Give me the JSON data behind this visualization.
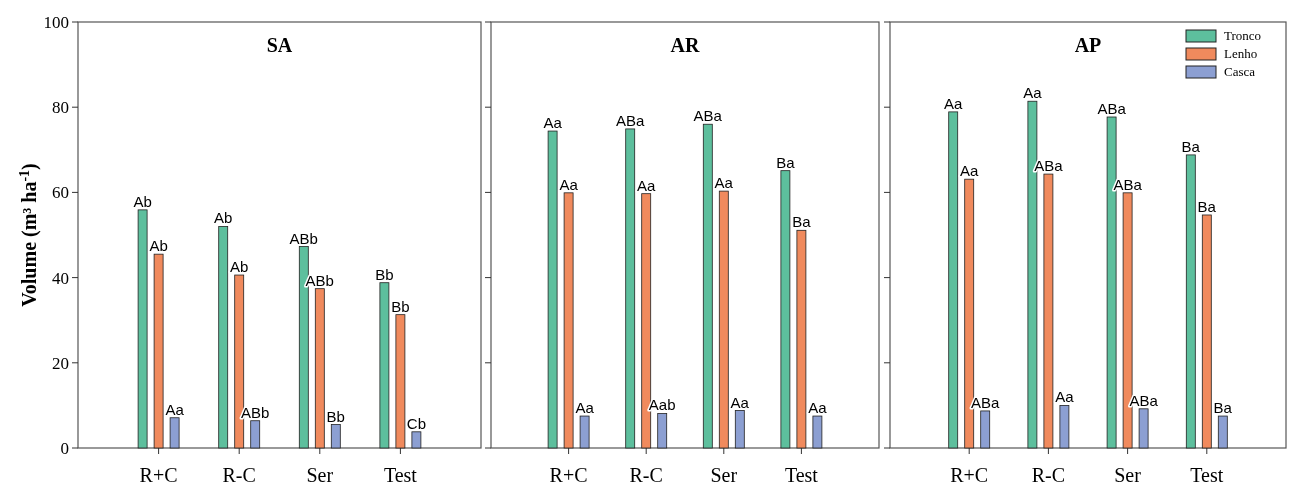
{
  "chart_data": [
    {
      "type": "bar",
      "title": "SA",
      "ylabel": "Volume (m³ ha$^{-1}$)",
      "categories": [
        "R+C",
        "R-C",
        "Ser",
        "Test"
      ],
      "ylim": [
        0,
        100
      ],
      "yticks": [
        0,
        20,
        40,
        60,
        80,
        100
      ],
      "series": [
        {
          "color": "#5dbf9d",
          "values": [
            55.9,
            52.0,
            47.3,
            38.8
          ],
          "value_labels": [
            "Ab",
            "Ab",
            "ABb",
            "Bb"
          ]
        },
        {
          "color": "#f08a5d",
          "values": [
            45.5,
            40.6,
            37.4,
            31.3
          ],
          "value_labels": [
            "Ab",
            "Ab",
            "ABb",
            "Bb"
          ]
        },
        {
          "color": "#8c9fd2",
          "values": [
            7.1,
            6.4,
            5.5,
            3.8
          ],
          "value_labels": [
            "Aa",
            "ABb",
            "Bb",
            "Cb"
          ]
        }
      ],
      "legend": false
    },
    {
      "type": "bar",
      "title": "AR",
      "categories": [
        "R+C",
        "R-C",
        "Ser",
        "Test"
      ],
      "ylim": [
        0,
        100
      ],
      "yticks": [
        0,
        20,
        40,
        60,
        80,
        100
      ],
      "tick_labels": "x",
      "series": [
        {
          "color": "#5dbf9d",
          "values": [
            74.4,
            74.9,
            76.0,
            65.1
          ],
          "value_labels": [
            "Aa",
            "ABa",
            "ABa",
            "Ba"
          ]
        },
        {
          "color": "#f08a5d",
          "values": [
            59.9,
            59.7,
            60.3,
            51.1
          ],
          "value_labels": [
            "Aa",
            "Aa",
            "Aa",
            "Ba"
          ]
        },
        {
          "color": "#8c9fd2",
          "values": [
            7.5,
            8.1,
            8.8,
            7.5
          ],
          "value_labels": [
            "Aa",
            "Aab",
            "Aa",
            "Aa"
          ]
        }
      ],
      "legend": false
    },
    {
      "type": "bar",
      "title": "AP",
      "categories": [
        "R+C",
        "R-C",
        "Ser",
        "Test"
      ],
      "ylim": [
        0,
        100
      ],
      "yticks": [
        0,
        20,
        40,
        60,
        80,
        100
      ],
      "tick_labels": "x",
      "series": [
        {
          "name": "Tronco",
          "color": "#5dbf9d",
          "values": [
            78.9,
            81.4,
            77.7,
            68.8
          ],
          "value_labels": [
            "Aa",
            "Aa",
            "ABa",
            "Ba"
          ]
        },
        {
          "name": "Lenho",
          "color": "#f08a5d",
          "values": [
            63.1,
            64.3,
            59.9,
            54.7
          ],
          "value_labels": [
            "Aa",
            "ABa",
            "ABa",
            "Ba"
          ]
        },
        {
          "name": "Casca",
          "color": "#8c9fd2",
          "values": [
            8.7,
            10.0,
            9.2,
            7.5
          ],
          "value_labels": [
            "ABa",
            "Aa",
            "ABa",
            "Ba"
          ]
        }
      ],
      "legend": "top right"
    }
  ]
}
